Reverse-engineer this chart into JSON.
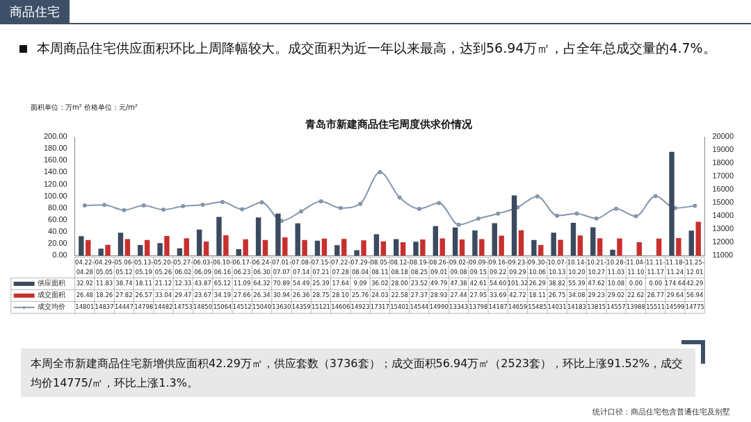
{
  "chart_data": {
    "type": "bar",
    "title": "青岛市新建商品住宅周度供求价情况",
    "subtitle": "本周商品住宅供应面积环比上周降幅较大。成交面积为近一年以来最高，达到56.94万㎡，占全年总成交量的4.7%。",
    "annotations": [
      "商品住宅",
      "面积单位：万m² 价格单位：元/m²",
      "本周全市新建商品住宅新增供应面积42.29万㎡，供应套数（3736套）；成交面积56.94万㎡（2523套），环比上涨91.52%，成交均价14775/㎡，环比上涨1.3%。",
      "统计口径：商品住宅包含普通住宅及别墅"
    ],
    "categories": [
      "04.22-04.28",
      "04.29-05.05",
      "05.06-05.12",
      "05.13-05.19",
      "05.20-05.26",
      "05.27-06.02",
      "06.03-06.09",
      "06.10-06.16",
      "06.17-06.23",
      "06.24-06.30",
      "07.01-07.07",
      "07.08-07.14",
      "07.15-07.21",
      "07.22-07.28",
      "07.29-08.04",
      "08.05-08.11",
      "08.12-08.18",
      "08.19-08.25",
      "08.26-09.01",
      "09.02-09.08",
      "09.09-09.15",
      "09.16-09.22",
      "09.23-09.29",
      "09.30-10.06",
      "10.07-10.13",
      "10.14-10.20",
      "10.21-10.27",
      "10.28-11.03",
      "11.04-11.10",
      "11.11-11.17",
      "11.18-11.24",
      "11.25-12.01"
    ],
    "series": [
      {
        "name": "供应面积",
        "type": "bar",
        "color": "#3b4a5e",
        "values": [
          32.92,
          11.83,
          38.74,
          18.11,
          21.12,
          12.33,
          43.87,
          65.12,
          11.09,
          64.32,
          70.89,
          54.49,
          25.39,
          17.64,
          9.09,
          36.02,
          28.0,
          23.52,
          49.79,
          47.38,
          42.61,
          54.6,
          101.32,
          26.29,
          38.82,
          55.39,
          47.62,
          10.08,
          0.0,
          0.0,
          174.64,
          42.29
        ],
        "value_labels": [
          "32.92",
          "11.83",
          "38.74",
          "18.11",
          "21.12",
          "12.33",
          "43.87",
          "65.12",
          "11.09",
          "64.32",
          "70.89",
          "54.49",
          "25.39",
          "17.64",
          "9.09",
          "36.02",
          "28.00",
          "23.52",
          "49.79",
          "47.38",
          "42.61",
          "54.60",
          "101.32",
          "26.29",
          "38.82",
          "55.39",
          "47.62",
          "10.08",
          "0.00",
          "0.00",
          "174.64",
          "42.29"
        ]
      },
      {
        "name": "成交面积",
        "type": "bar",
        "color": "#c8302e",
        "values": [
          26.48,
          18.26,
          27.82,
          26.57,
          33.04,
          29.47,
          23.67,
          34.19,
          27.66,
          26.34,
          30.94,
          26.36,
          28.75,
          28.1,
          25.76,
          24.03,
          22.58,
          27.37,
          28.93,
          27.44,
          27.95,
          33.69,
          42.72,
          18.11,
          26.75,
          34.08,
          29.23,
          29.02,
          22.62,
          28.77,
          29.64,
          56.94
        ],
        "value_labels": [
          "26.48",
          "18.26",
          "27.82",
          "26.57",
          "33.04",
          "29.47",
          "23.67",
          "34.19",
          "27.66",
          "26.34",
          "30.94",
          "26.36",
          "28.75",
          "28.10",
          "25.76",
          "24.03",
          "22.58",
          "27.37",
          "28.93",
          "27.44",
          "27.95",
          "33.69",
          "42.72",
          "18.11",
          "26.75",
          "34.08",
          "29.23",
          "29.02",
          "22.62",
          "28.77",
          "29.64",
          "56.94"
        ]
      },
      {
        "name": "成交均价",
        "type": "line",
        "axis": "y2",
        "color": "#8396ad",
        "values": [
          14801,
          14837,
          14447,
          14798,
          14482,
          14753,
          14850,
          15064,
          14512,
          15040,
          13630,
          14359,
          15121,
          14606,
          14923,
          17317,
          15401,
          14544,
          14990,
          13343,
          13798,
          14187,
          14659,
          15485,
          14031,
          14183,
          13815,
          14557,
          13988,
          15511,
          14599,
          14775
        ],
        "value_labels": [
          "14801",
          "14837",
          "14447",
          "14798",
          "14482",
          "14753",
          "14850",
          "15064",
          "14512",
          "15040",
          "13630",
          "14359",
          "15121",
          "14606",
          "14923",
          "17317",
          "15401",
          "14544",
          "14990",
          "13343",
          "13798",
          "14187",
          "14659",
          "15485",
          "14031",
          "14183",
          "13815",
          "14557",
          "13988",
          "15511",
          "14599",
          "14775"
        ]
      }
    ],
    "ylim": [
      0,
      200
    ],
    "yticks": [
      {
        "value": 0,
        "label": "0.00"
      },
      {
        "value": 20,
        "label": "20.00"
      },
      {
        "value": 40,
        "label": "40.00"
      },
      {
        "value": 60,
        "label": "60.00"
      },
      {
        "value": 80,
        "label": "80.00"
      },
      {
        "value": 100,
        "label": "100.00"
      },
      {
        "value": 120,
        "label": "120.00"
      },
      {
        "value": 140,
        "label": "140.00"
      },
      {
        "value": 160,
        "label": "160.00"
      },
      {
        "value": 180,
        "label": "180.00"
      },
      {
        "value": 200,
        "label": "200.00"
      }
    ],
    "y2lim": [
      11000,
      20000
    ],
    "y2ticks": [
      11000,
      12000,
      13000,
      14000,
      15000,
      16000,
      17000,
      18000,
      19000,
      20000
    ],
    "legend": "bottom",
    "marker": "circle",
    "line_style": "solid"
  }
}
